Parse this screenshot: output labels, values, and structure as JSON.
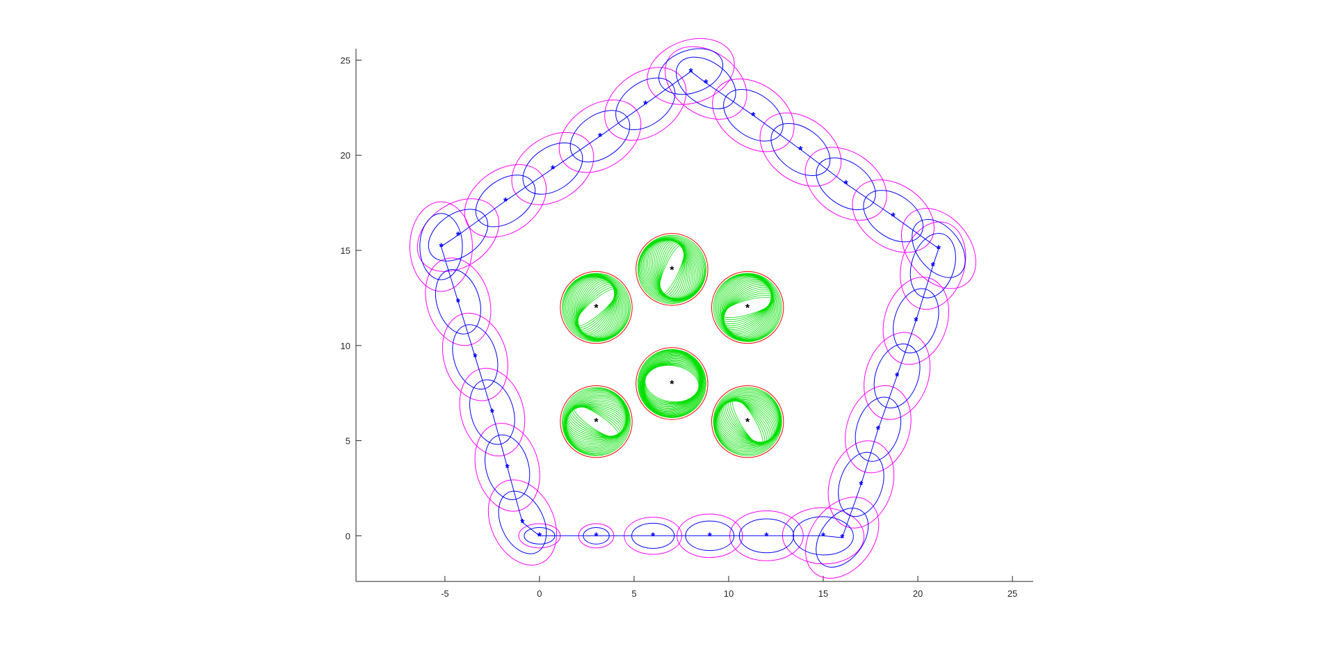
{
  "chart_data": {
    "type": "scatter",
    "title": "",
    "xlabel": "",
    "ylabel": "",
    "xlim": [
      -9.7,
      26.1
    ],
    "ylim": [
      -2.4,
      25.6
    ],
    "grid": false,
    "legend": "none",
    "xticks": [
      -5,
      0,
      5,
      10,
      15,
      20,
      25
    ],
    "yticks": [
      0,
      5,
      10,
      15,
      20,
      25
    ],
    "colors": {
      "trajectory": "#0000ff",
      "inner_ellipse": "#0000ff",
      "outer_ellipse": "#ff00ff",
      "landmark_star": "#000000",
      "landmark_circle": "#ff0000",
      "landmark_ellipses": "#00e000"
    },
    "trajectory": {
      "x": [
        0,
        3,
        6,
        9,
        12,
        15,
        16,
        17,
        17.9,
        18.9,
        19.9,
        20.8,
        21.1,
        18.7,
        16.2,
        13.8,
        11.3,
        8.8,
        8,
        5.6,
        3.2,
        0.7,
        -1.8,
        -4.3,
        -5.2,
        -4.3,
        -3.4,
        -2.5,
        -1.7,
        -0.9,
        0
      ],
      "y": [
        0,
        0,
        0,
        0,
        0,
        0,
        -0.1,
        2.7,
        5.6,
        8.4,
        11.3,
        14.2,
        15.1,
        16.8,
        18.5,
        20.3,
        22.1,
        23.8,
        24.4,
        22.7,
        21,
        19.3,
        17.6,
        15.8,
        15.2,
        12.3,
        9.4,
        6.5,
        3.6,
        0.7,
        0
      ]
    },
    "landmarks": [
      {
        "x": 7,
        "y": 14
      },
      {
        "x": 3,
        "y": 12
      },
      {
        "x": 11,
        "y": 12
      },
      {
        "x": 7,
        "y": 8
      },
      {
        "x": 3,
        "y": 6
      },
      {
        "x": 11,
        "y": 6
      }
    ],
    "landmark_circle_radius": 1.9
  }
}
